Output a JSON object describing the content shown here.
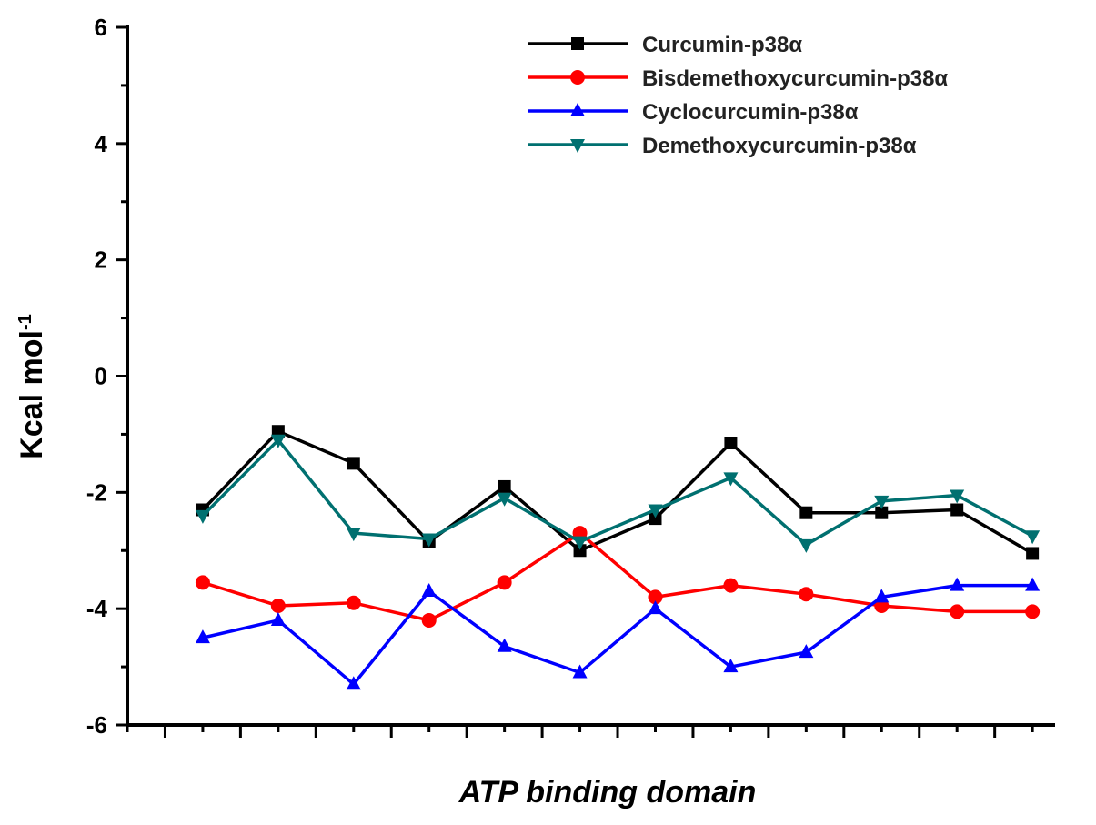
{
  "chart_data": {
    "type": "line",
    "title": "",
    "xlabel": "ATP binding domain",
    "ylabel": "Kcal mol",
    "ylabel_superscript": "-1",
    "ylim": [
      -6,
      6
    ],
    "yticks": [
      "6",
      "4",
      "2",
      "0",
      "-2",
      "-4",
      "-6"
    ],
    "x": [
      1,
      2,
      3,
      4,
      5,
      6,
      7,
      8,
      9,
      10,
      11,
      12
    ],
    "xlim": [
      0,
      12.3
    ],
    "xtick_labels": [],
    "legend_position": "top-right",
    "series": [
      {
        "name": "Curcumin-p38α",
        "color": "#000000",
        "marker": "square",
        "values": [
          -2.3,
          -0.95,
          -1.5,
          -2.85,
          -1.9,
          -3.0,
          -2.45,
          -1.15,
          -2.35,
          -2.35,
          -2.3,
          -3.05
        ]
      },
      {
        "name": "Bisdemethoxycurcumin-p38α",
        "color": "#ff0000",
        "marker": "circle",
        "values": [
          -3.55,
          -3.95,
          -3.9,
          -4.2,
          -3.55,
          -2.7,
          -3.8,
          -3.6,
          -3.75,
          -3.95,
          -4.05,
          -4.05
        ]
      },
      {
        "name": "Cyclocurcumin-p38α",
        "color": "#0000ff",
        "marker": "triangle-up",
        "values": [
          -4.5,
          -4.2,
          -5.3,
          -3.7,
          -4.65,
          -5.1,
          -4.0,
          -5.0,
          -4.75,
          -3.8,
          -3.6,
          -3.6
        ]
      },
      {
        "name": "Demethoxycurcumin-p38α",
        "color": "#007070",
        "marker": "triangle-down",
        "values": [
          -2.4,
          -1.1,
          -2.7,
          -2.8,
          -2.1,
          -2.85,
          -2.3,
          -1.75,
          -2.9,
          -2.15,
          -2.05,
          -2.75
        ]
      }
    ]
  }
}
